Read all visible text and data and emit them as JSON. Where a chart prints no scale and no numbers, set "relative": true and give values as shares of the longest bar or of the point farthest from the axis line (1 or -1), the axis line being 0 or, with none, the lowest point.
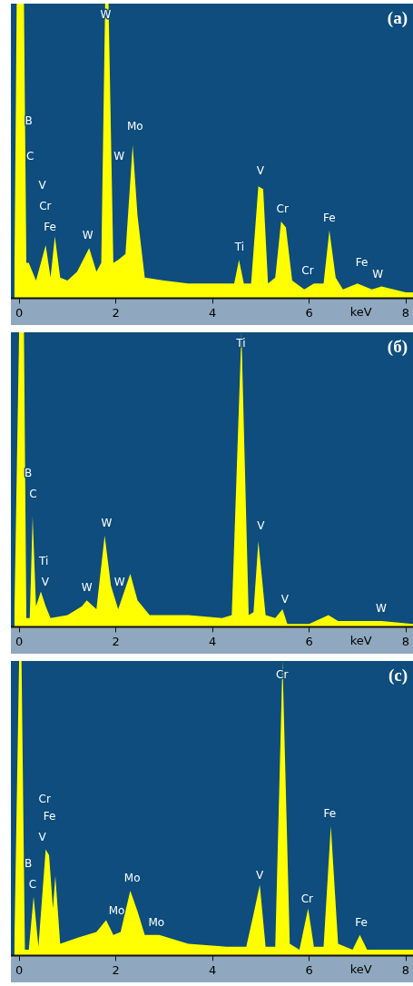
{
  "chart_data": [
    {
      "type": "area",
      "title": "(a)",
      "xlabel": "keV",
      "relative": true,
      "xlim": [
        -0.17,
        8.15
      ],
      "xticks": [
        0,
        2,
        4,
        6,
        8
      ],
      "series": [
        {
          "color": "#ffff00",
          "x": [
            -0.1,
            -0.05,
            0.1,
            0.15,
            0.2,
            0.35,
            0.55,
            0.65,
            0.74,
            0.85,
            1.0,
            1.2,
            1.45,
            1.6,
            1.7,
            1.78,
            1.85,
            1.95,
            2.05,
            2.2,
            2.35,
            2.45,
            2.6,
            3.0,
            3.5,
            4.0,
            4.45,
            4.55,
            4.65,
            4.8,
            4.95,
            5.05,
            5.15,
            5.3,
            5.42,
            5.52,
            5.65,
            5.9,
            6.1,
            6.3,
            6.42,
            6.55,
            6.7,
            7.0,
            7.3,
            7.5,
            8.0,
            8.15
          ],
          "values": [
            0.02,
            1,
            1,
            0.12,
            0.12,
            0.06,
            0.18,
            0.07,
            0.21,
            0.07,
            0.06,
            0.09,
            0.17,
            0.09,
            0.12,
            1,
            1,
            0.12,
            0.13,
            0.15,
            0.52,
            0.28,
            0.07,
            0.06,
            0.05,
            0.05,
            0.05,
            0.13,
            0.05,
            0.05,
            0.38,
            0.37,
            0.05,
            0.07,
            0.26,
            0.24,
            0.06,
            0.03,
            0.05,
            0.05,
            0.23,
            0.07,
            0.03,
            0.05,
            0.03,
            0.04,
            0.02,
            0.02
          ]
        }
      ],
      "annotations": [
        "W",
        "B",
        "C",
        "V",
        "Cr",
        "Fe",
        "W",
        "W",
        "Mo",
        "Ti",
        "V",
        "Cr",
        "Fe",
        "Cr",
        "Fe",
        "W"
      ]
    },
    {
      "type": "area",
      "title": "(б)",
      "xlabel": "keV",
      "relative": true,
      "xlim": [
        -0.17,
        8.15
      ],
      "xticks": [
        0,
        2,
        4,
        6,
        8
      ],
      "series": [
        {
          "color": "#ffff00",
          "x": [
            -0.1,
            0.0,
            0.1,
            0.15,
            0.22,
            0.28,
            0.35,
            0.45,
            0.55,
            0.65,
            1.0,
            1.3,
            1.4,
            1.6,
            1.77,
            1.9,
            2.05,
            2.3,
            2.45,
            2.7,
            3.5,
            4.2,
            4.4,
            4.6,
            4.75,
            4.85,
            4.95,
            5.1,
            5.3,
            5.45,
            5.55,
            6.0,
            6.4,
            6.6,
            7.3,
            7.5,
            8.15
          ],
          "values": [
            0.02,
            1,
            1,
            0.03,
            0.03,
            0.375,
            0.07,
            0.12,
            0.07,
            0.03,
            0.04,
            0.07,
            0.09,
            0.06,
            0.31,
            0.14,
            0.06,
            0.18,
            0.09,
            0.04,
            0.04,
            0.03,
            0.04,
            1,
            0.04,
            0.05,
            0.29,
            0.04,
            0.03,
            0.06,
            0.01,
            0.01,
            0.04,
            0.02,
            0.02,
            0.02,
            0.01
          ]
        }
      ],
      "annotations": [
        "B",
        "C",
        "Ti",
        "V",
        "W",
        "W",
        "W",
        "Ti",
        "V",
        "V",
        "W"
      ]
    },
    {
      "type": "area",
      "title": "(c)",
      "xlabel": "keV",
      "relative": true,
      "xlim": [
        -0.17,
        8.15
      ],
      "xticks": [
        0,
        2,
        4,
        6,
        8
      ],
      "series": [
        {
          "color": "#ffff00",
          "x": [
            -0.1,
            0.0,
            0.05,
            0.12,
            0.2,
            0.3,
            0.4,
            0.55,
            0.62,
            0.7,
            0.75,
            0.85,
            1.2,
            1.6,
            1.8,
            1.95,
            2.1,
            2.3,
            2.45,
            2.6,
            2.9,
            3.5,
            4.3,
            4.7,
            4.85,
            4.98,
            5.1,
            5.3,
            5.45,
            5.6,
            5.8,
            5.98,
            6.1,
            6.3,
            6.45,
            6.6,
            6.9,
            7.05,
            7.2,
            8.15
          ],
          "values": [
            0.02,
            1,
            1,
            0.02,
            0.02,
            0.2,
            0.03,
            0.36,
            0.34,
            0.16,
            0.27,
            0.04,
            0.06,
            0.08,
            0.12,
            0.07,
            0.08,
            0.22,
            0.15,
            0.07,
            0.07,
            0.04,
            0.03,
            0.03,
            0.14,
            0.24,
            0.03,
            0.03,
            1,
            0.04,
            0.02,
            0.16,
            0.03,
            0.03,
            0.44,
            0.04,
            0.02,
            0.07,
            0.02,
            0.02
          ]
        }
      ],
      "annotations": [
        "Cr",
        "Fe",
        "V",
        "B",
        "C",
        "Mo",
        "Mo",
        "Mo",
        "V",
        "Cr",
        "Cr",
        "Fe",
        "Fe"
      ]
    }
  ]
}
